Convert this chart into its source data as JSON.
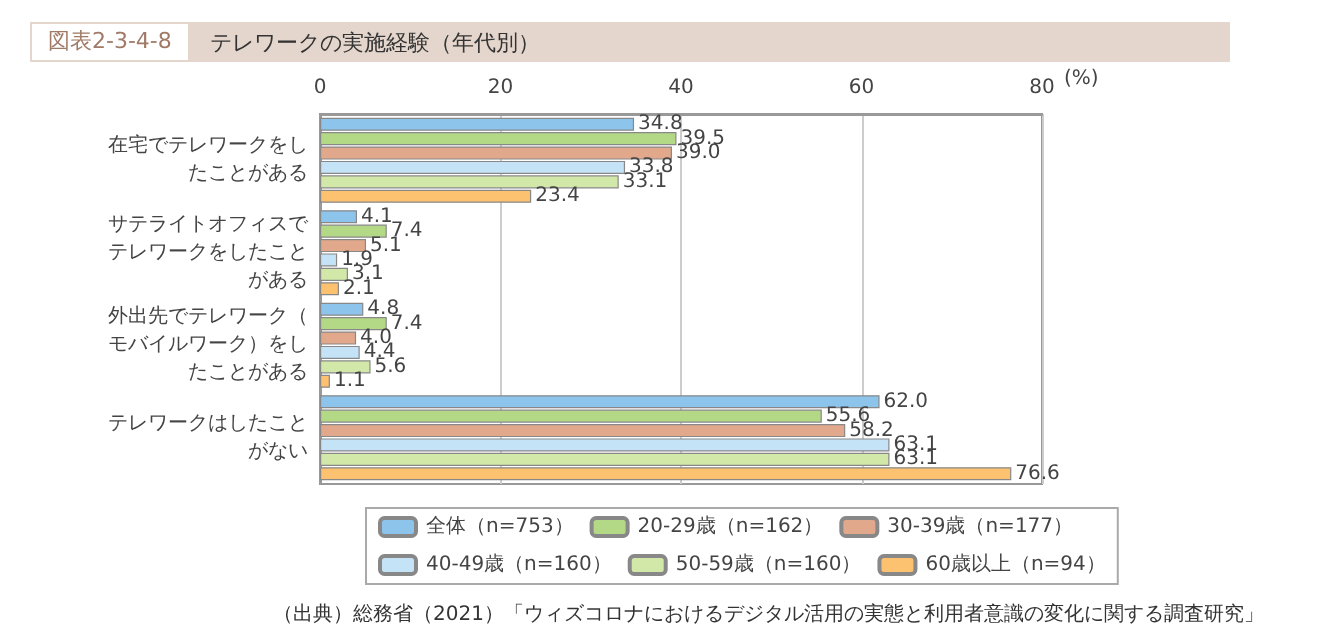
{
  "chart_data": {
    "type": "bar",
    "orientation": "horizontal",
    "title": "テレワークの実施経験（年代別）",
    "xlabel": "(%)",
    "annotations": [
      "図表2-3-4-8",
      "（出典）総務省（2021）「ウィズコロナにおけるデジタル活用の実態と利用者意識の変化に関する調査研究」"
    ],
    "categories": [
      "在宅でテレワークをしたことがある",
      "サテライトオフィスでテレワークをしたことがある",
      "外出先でテレワーク（モバイルワーク）をしたことがある",
      "テレワークはしたことがない"
    ],
    "series": [
      {
        "name": "全体（n=753）",
        "color": "#8cc4ec",
        "values": [
          34.8,
          4.1,
          4.8,
          62.0
        ],
        "value_labels": [
          "34.8",
          "4.1",
          "4.8",
          "62.0"
        ]
      },
      {
        "name": "20-29歳（n=162）",
        "color": "#b3d987",
        "values": [
          39.5,
          7.4,
          7.4,
          55.6
        ]
      },
      {
        "name": "30-39歳（n=177）",
        "color": "#e2a88b",
        "values": [
          39.0,
          5.1,
          4.0,
          58.2
        ],
        "value_labels": [
          "39.0",
          "5.1",
          "4.0",
          "58.2"
        ]
      },
      {
        "name": "40-49歳（n=160）",
        "color": "#c5e3f7",
        "values": [
          33.8,
          1.9,
          4.4,
          63.1
        ]
      },
      {
        "name": "50-59歳（n=160）",
        "color": "#d2e8a9",
        "values": [
          33.1,
          3.1,
          5.6,
          63.1
        ]
      },
      {
        "name": "60歳以上（n=94）",
        "color": "#fcc26f",
        "values": [
          23.4,
          2.1,
          1.1,
          76.6
        ]
      }
    ],
    "xlim": [
      0,
      80
    ],
    "xticks": [
      0,
      20,
      40,
      60,
      80
    ],
    "grid": "x",
    "legend": "bottom",
    "data_labels": true
  }
}
